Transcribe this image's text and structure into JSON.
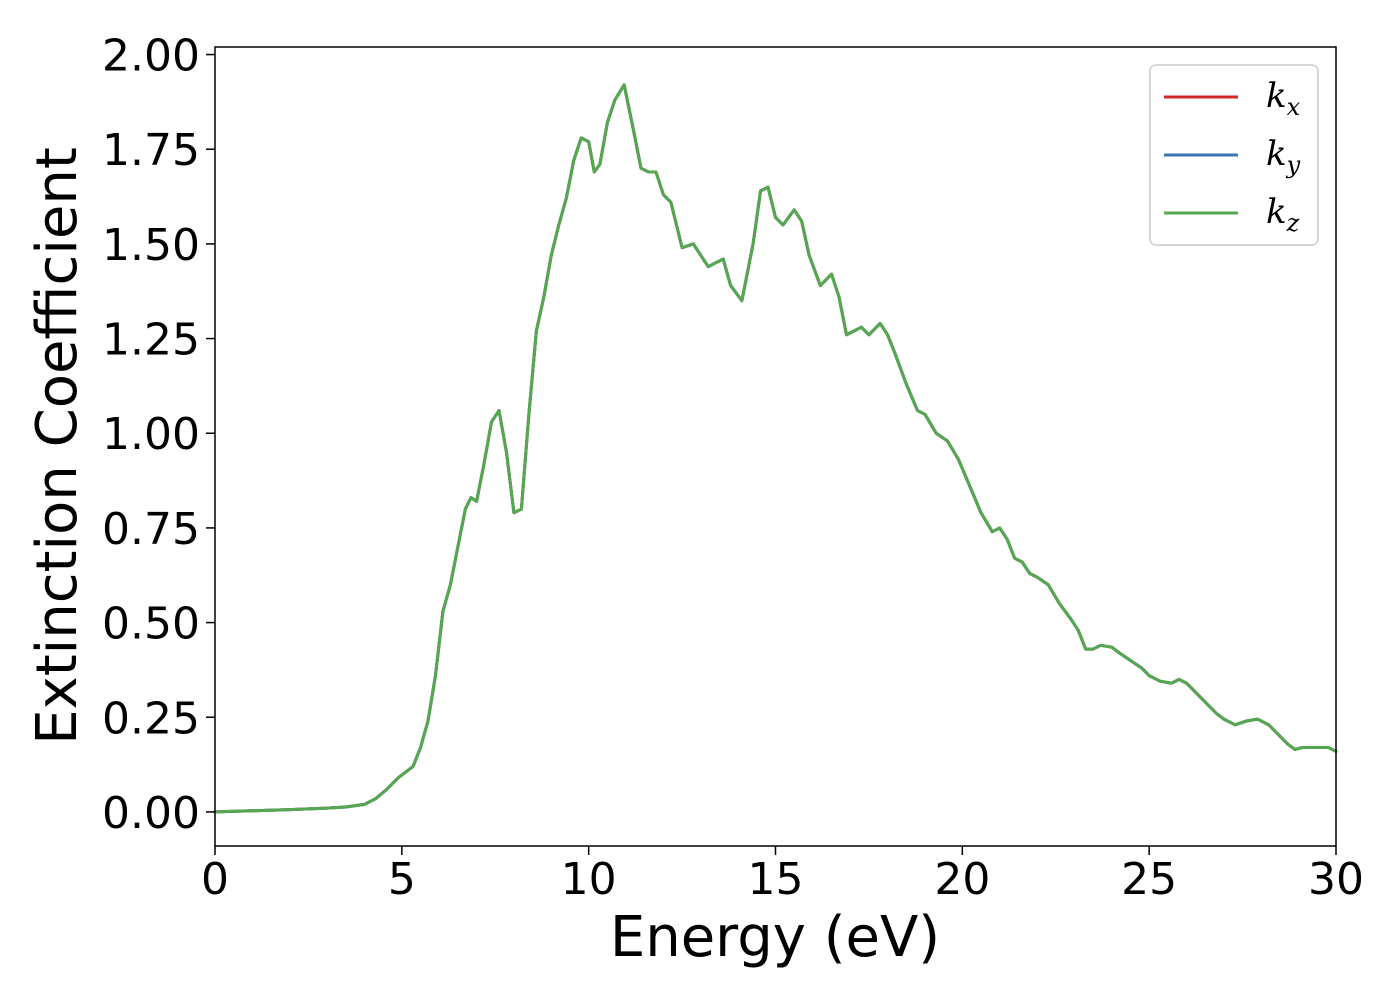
{
  "chart_data": {
    "type": "line",
    "title": "",
    "xlabel": "Energy (eV)",
    "ylabel": "Extinction Coefficient",
    "xlim": [
      0,
      30
    ],
    "ylim": [
      -0.09,
      2.02
    ],
    "xticks": [
      "0",
      "5",
      "10",
      "15",
      "20",
      "25",
      "30"
    ],
    "yticks": [
      "0.00",
      "0.25",
      "0.50",
      "0.75",
      "1.00",
      "1.25",
      "1.50",
      "1.75",
      "2.00"
    ],
    "grid": false,
    "legend_position": "top-right",
    "colors": {
      "kx": "#d62728",
      "ky": "#3a75ad",
      "kz": "#55a84f"
    },
    "series": [
      {
        "name": "k",
        "subscript": "x",
        "key": "kx"
      },
      {
        "name": "k",
        "subscript": "y",
        "key": "ky"
      },
      {
        "name": "k",
        "subscript": "z",
        "key": "kz"
      }
    ],
    "x": [
      0,
      1,
      2,
      3,
      3.5,
      4,
      4.3,
      4.6,
      4.9,
      5.1,
      5.3,
      5.5,
      5.7,
      5.9,
      6.1,
      6.3,
      6.5,
      6.7,
      6.85,
      7.0,
      7.2,
      7.4,
      7.6,
      7.8,
      8.0,
      8.2,
      8.4,
      8.6,
      8.8,
      9.0,
      9.2,
      9.4,
      9.6,
      9.8,
      10.0,
      10.15,
      10.3,
      10.5,
      10.7,
      10.95,
      11.2,
      11.4,
      11.6,
      11.8,
      12.0,
      12.2,
      12.5,
      12.8,
      13.0,
      13.2,
      13.4,
      13.6,
      13.8,
      14.1,
      14.4,
      14.6,
      14.8,
      15.0,
      15.2,
      15.5,
      15.7,
      15.9,
      16.2,
      16.5,
      16.7,
      16.9,
      17.1,
      17.3,
      17.5,
      17.8,
      18.0,
      18.2,
      18.5,
      18.8,
      19.0,
      19.3,
      19.6,
      19.9,
      20.2,
      20.5,
      20.8,
      21.0,
      21.2,
      21.4,
      21.6,
      21.8,
      22.0,
      22.3,
      22.6,
      22.9,
      23.1,
      23.3,
      23.5,
      23.7,
      24.0,
      24.2,
      24.5,
      24.8,
      25.0,
      25.3,
      25.6,
      25.8,
      26.0,
      26.2,
      26.5,
      26.8,
      27.0,
      27.3,
      27.6,
      27.9,
      28.2,
      28.5,
      28.7,
      28.9,
      29.1,
      29.3,
      29.5,
      29.8,
      30.0
    ],
    "values": [
      0.0,
      0.003,
      0.006,
      0.01,
      0.013,
      0.02,
      0.035,
      0.06,
      0.09,
      0.105,
      0.12,
      0.17,
      0.24,
      0.36,
      0.53,
      0.6,
      0.7,
      0.8,
      0.83,
      0.82,
      0.92,
      1.03,
      1.06,
      0.95,
      0.79,
      0.8,
      1.05,
      1.27,
      1.36,
      1.47,
      1.55,
      1.62,
      1.72,
      1.78,
      1.77,
      1.69,
      1.71,
      1.82,
      1.88,
      1.92,
      1.8,
      1.7,
      1.69,
      1.69,
      1.63,
      1.61,
      1.49,
      1.5,
      1.47,
      1.44,
      1.45,
      1.46,
      1.39,
      1.35,
      1.5,
      1.64,
      1.65,
      1.57,
      1.55,
      1.59,
      1.56,
      1.47,
      1.39,
      1.42,
      1.36,
      1.26,
      1.27,
      1.28,
      1.26,
      1.29,
      1.26,
      1.21,
      1.13,
      1.06,
      1.05,
      1.0,
      0.98,
      0.93,
      0.86,
      0.79,
      0.74,
      0.75,
      0.72,
      0.67,
      0.66,
      0.63,
      0.62,
      0.6,
      0.55,
      0.51,
      0.48,
      0.43,
      0.43,
      0.44,
      0.435,
      0.42,
      0.4,
      0.38,
      0.36,
      0.345,
      0.34,
      0.35,
      0.34,
      0.32,
      0.29,
      0.26,
      0.245,
      0.23,
      0.24,
      0.245,
      0.23,
      0.2,
      0.18,
      0.165,
      0.17,
      0.17,
      0.17,
      0.17,
      0.16
    ]
  }
}
